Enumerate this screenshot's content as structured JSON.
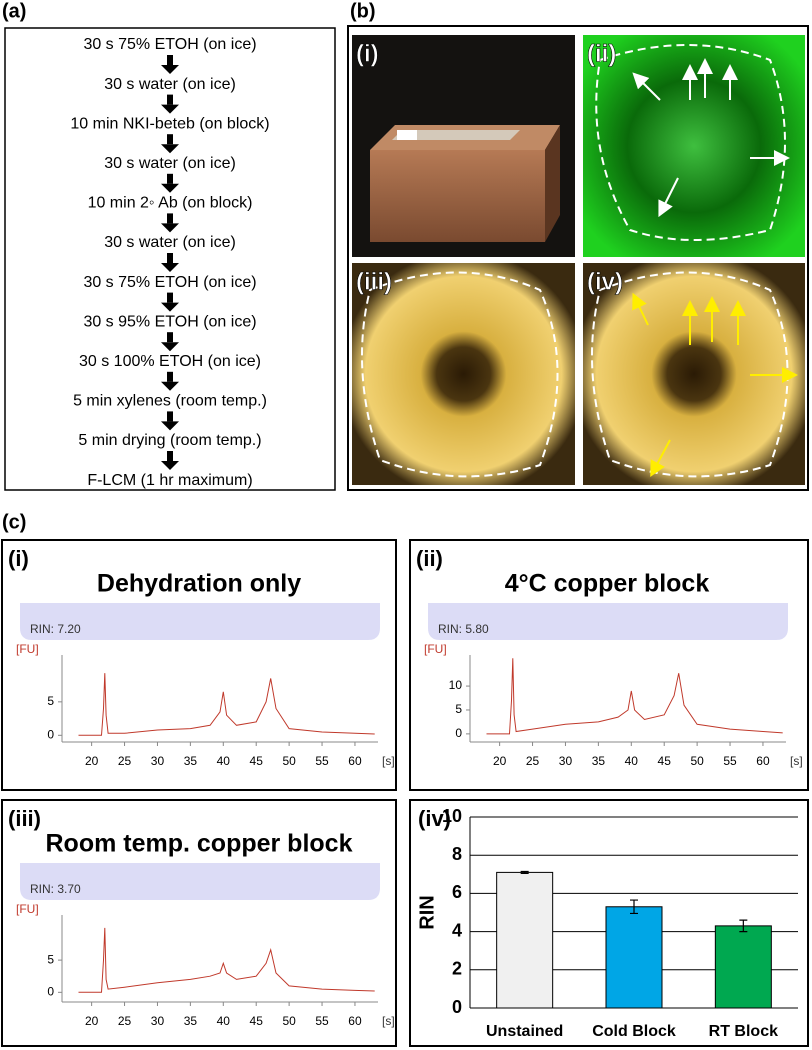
{
  "panel_a": {
    "label": "(a)",
    "steps": [
      "30 s 75% ETOH (on ice)",
      "30 s water (on ice)",
      "10 min NKI-beteb (on block)",
      "30 s water (on ice)",
      "10 min 2◦ Ab (on block)",
      "30 s water (on ice)",
      "30 s 75% ETOH (on ice)",
      "30 s 95% ETOH (on ice)",
      "30 s 100% ETOH (on ice)",
      "5 min xylenes (room temp.)",
      "5 min drying (room temp.)",
      "F-LCM (1 hr maximum)"
    ]
  },
  "panel_b": {
    "label": "(b)",
    "images": [
      {
        "label": "(i)"
      },
      {
        "label": "(ii)"
      },
      {
        "label": "(iii)"
      },
      {
        "label": "(iv)"
      }
    ]
  },
  "panel_c": {
    "label": "(c)",
    "traces": [
      {
        "type": "line",
        "label": "(i)",
        "title": "Dehydration only",
        "rin": "RIN: 7.20",
        "y_unit": "[FU]",
        "x_unit": "[s]",
        "color": "#c0392b",
        "xlim": [
          15.5,
          63.5
        ],
        "xticks": [
          20,
          25,
          30,
          35,
          40,
          45,
          50,
          55,
          60
        ],
        "ylim": [
          -1,
          12
        ],
        "yticks": [
          0,
          5
        ],
        "x": [
          18,
          21.5,
          21.8,
          22,
          22.2,
          22.5,
          25,
          30,
          35,
          38,
          39.5,
          40,
          40.5,
          42,
          45,
          46.5,
          47.2,
          48,
          50,
          55,
          60,
          63
        ],
        "values": [
          0,
          0,
          4,
          9.3,
          3,
          0.3,
          0.3,
          0.8,
          1,
          1.5,
          3.5,
          6.5,
          3,
          1.5,
          2,
          5,
          8.5,
          4,
          1,
          0.5,
          0.3,
          0.2
        ]
      },
      {
        "type": "line",
        "label": "(ii)",
        "title": "4°C copper block",
        "rin": "RIN: 5.80",
        "y_unit": "[FU]",
        "x_unit": "[s]",
        "color": "#c0392b",
        "xlim": [
          15.5,
          63.5
        ],
        "xticks": [
          20,
          25,
          30,
          35,
          40,
          45,
          50,
          55,
          60
        ],
        "ylim": [
          -1.7,
          16.5
        ],
        "yticks": [
          0,
          5,
          10
        ],
        "x": [
          18,
          21.5,
          21.8,
          22,
          22.2,
          22.5,
          25,
          30,
          35,
          38,
          39.5,
          40,
          40.5,
          42,
          45,
          46.5,
          47.2,
          48,
          50,
          55,
          60,
          63
        ],
        "values": [
          0,
          0,
          7,
          15.8,
          4,
          0.5,
          1,
          2,
          2.5,
          3.5,
          5,
          9,
          5,
          3,
          4,
          8,
          12.7,
          6,
          2,
          1,
          0.5,
          0.2
        ]
      },
      {
        "type": "line",
        "label": "(iii)",
        "title": "Room temp. copper block",
        "rin": "RIN: 3.70",
        "y_unit": "[FU]",
        "x_unit": "[s]",
        "color": "#c0392b",
        "xlim": [
          15.5,
          63.5
        ],
        "xticks": [
          20,
          25,
          30,
          35,
          40,
          45,
          50,
          55,
          60
        ],
        "ylim": [
          -1.5,
          12
        ],
        "yticks": [
          0,
          5
        ],
        "x": [
          18,
          21.5,
          21.8,
          22,
          22.2,
          22.5,
          25,
          30,
          35,
          38,
          39.5,
          40,
          40.5,
          42,
          45,
          46.5,
          47.2,
          48,
          50,
          55,
          60,
          63
        ],
        "values": [
          0,
          0,
          5,
          10,
          2,
          0.5,
          0.8,
          1.5,
          2,
          2.5,
          3,
          4.5,
          3,
          2,
          2.5,
          4.5,
          6.6,
          3,
          1,
          0.5,
          0.3,
          0.2
        ]
      }
    ],
    "bar_chart": {
      "type": "bar",
      "label": "(iv)",
      "ylabel": "RIN",
      "categories": [
        "Unstained",
        "Cold Block",
        "RT Block"
      ],
      "values": [
        7.1,
        5.3,
        4.3
      ],
      "errors": [
        0.05,
        0.35,
        0.3
      ],
      "colors": [
        "#f0f0f0",
        "#00a6e6",
        "#00a850"
      ],
      "ylim": [
        0,
        10
      ],
      "yticks": [
        0,
        2,
        4,
        6,
        8,
        10
      ],
      "grid": true
    }
  }
}
